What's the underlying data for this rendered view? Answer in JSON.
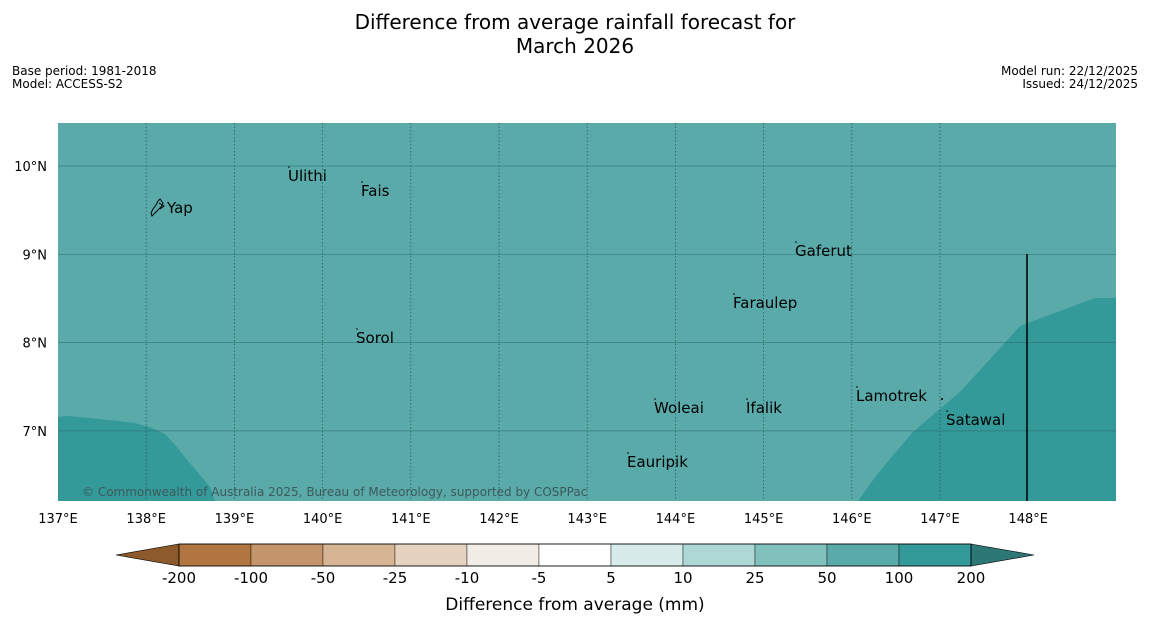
{
  "title": {
    "line1": "Difference from average rainfall forecast for",
    "line2": "March 2026"
  },
  "meta": {
    "base_period": "Base period: 1981-2018",
    "model": "Model: ACCESS-S2",
    "model_run": "Model run: 22/12/2025",
    "issued": "Issued: 24/12/2025"
  },
  "map": {
    "lon_ticks": [
      "137°E",
      "138°E",
      "139°E",
      "140°E",
      "141°E",
      "142°E",
      "143°E",
      "144°E",
      "145°E",
      "146°E",
      "147°E",
      "148°E"
    ],
    "lat_ticks": [
      "10°N",
      "9°N",
      "8°N",
      "7°N"
    ],
    "places": [
      {
        "name": "Yap"
      },
      {
        "name": "Ulithi"
      },
      {
        "name": "Fais"
      },
      {
        "name": "Gaferut"
      },
      {
        "name": "Faraulep"
      },
      {
        "name": "Sorol"
      },
      {
        "name": "Woleai"
      },
      {
        "name": "Ifalik"
      },
      {
        "name": "Lamotrek"
      },
      {
        "name": "Satawal"
      },
      {
        "name": "Eauripik"
      }
    ],
    "copyright": "© Commonwealth of Australia 2025, Bureau of Meteorology, supported by COSPPac",
    "colors": {
      "background_category": "#5aaaaa",
      "high_category": "#339999"
    }
  },
  "colorbar": {
    "labels": [
      "-200",
      "-100",
      "-50",
      "-25",
      "-10",
      "-5",
      "5",
      "10",
      "25",
      "50",
      "100",
      "200"
    ],
    "colors": [
      "#8c5a2b",
      "#b07540",
      "#c4956a",
      "#d6b594",
      "#e6d2c0",
      "#f1ece6",
      "#ffffff",
      "#d7ebea",
      "#add8d6",
      "#80c1be",
      "#5aaaaa",
      "#339999",
      "#2d7777"
    ],
    "label": "Difference from average (mm)"
  }
}
